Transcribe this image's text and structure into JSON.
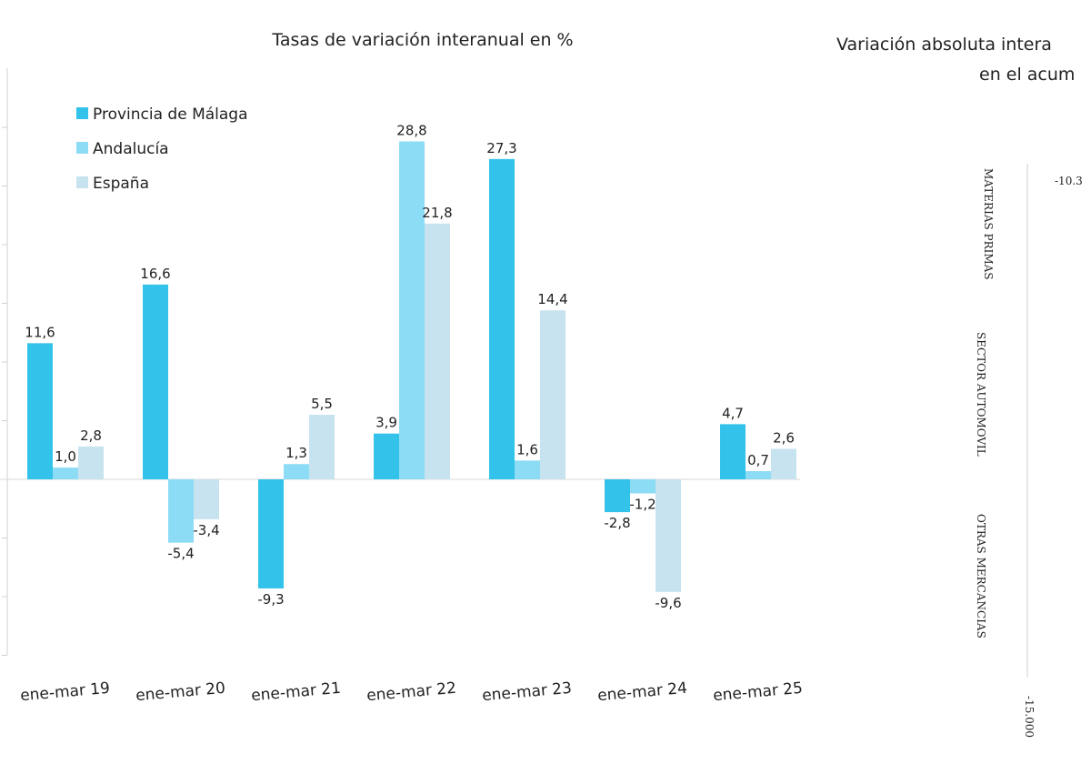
{
  "chart_data": [
    {
      "type": "bar",
      "title": "Tasas de variación interanual en %",
      "categories": [
        "ene-mar 19",
        "ene-mar 20",
        "ene-mar 21",
        "ene-mar 22",
        "ene-mar 23",
        "ene-mar 24",
        "ene-mar 25"
      ],
      "series": [
        {
          "name": "Provincia de Málaga",
          "color": "#33c3ea",
          "values": [
            11.6,
            16.6,
            -9.3,
            3.9,
            27.3,
            -2.8,
            4.7
          ],
          "labels": [
            "11,6",
            "16,6",
            "-9,3",
            "3,9",
            "27,3",
            "-2,8",
            "4,7"
          ]
        },
        {
          "name": "Andalucía",
          "color": "#8ddcf5",
          "values": [
            1.0,
            -5.4,
            1.3,
            28.8,
            1.6,
            -1.2,
            0.7
          ],
          "labels": [
            "1,0",
            "-5,4",
            "1,3",
            "28,8",
            "1,6",
            "-1,2",
            "0,7"
          ]
        },
        {
          "name": "España",
          "color": "#c8e3f0",
          "values": [
            2.8,
            -3.4,
            5.5,
            21.8,
            14.4,
            -9.6,
            2.6
          ],
          "labels": [
            "2,8",
            "-3,4",
            "5,5",
            "21,8",
            "14,4",
            "-9,6",
            "2,6"
          ]
        }
      ],
      "ylim": [
        -15,
        30
      ],
      "legend": "top-left",
      "grid": false
    },
    {
      "type": "bar",
      "title_lines": [
        "Variación absoluta intera",
        "en el acum"
      ],
      "categories": [
        "MATERIAS PRIMAS",
        "SECTOR AUTOMOVIL",
        "OTRAS MERCANCIAS"
      ],
      "visible_labels": [
        "-10.3",
        "-15.000"
      ],
      "orientation": "horizontal"
    }
  ]
}
